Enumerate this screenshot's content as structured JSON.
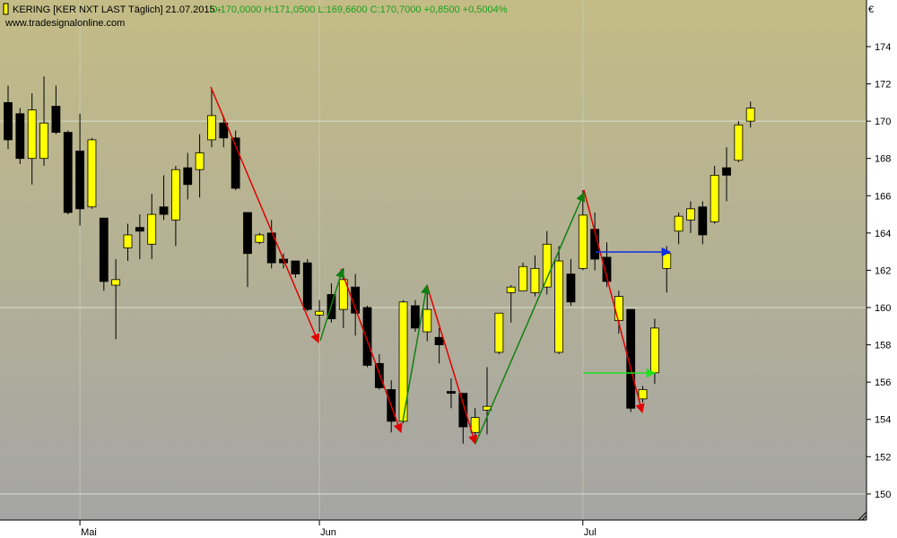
{
  "header": {
    "instrument": "KERING [KER NXT LAST Täglich] 21.07.2015 -",
    "quote": "O:170,0000 H:171,0500 L:169,6600 C:170,7000 +0,8500 +0,5004%",
    "watermark": "www.tradesignalonline.com"
  },
  "chart_data": {
    "type": "candlestick",
    "categories": [
      null,
      null,
      null,
      null,
      null,
      null,
      "Mai",
      null,
      null,
      null,
      null,
      null,
      null,
      null,
      null,
      null,
      null,
      null,
      null,
      null,
      null,
      null,
      null,
      null,
      null,
      null,
      "Jun",
      null,
      null,
      null,
      null,
      null,
      null,
      null,
      null,
      null,
      null,
      null,
      null,
      null,
      null,
      null,
      null,
      null,
      null,
      null,
      null,
      null,
      "Jul",
      null,
      null,
      null,
      null,
      null,
      null,
      null,
      null,
      null,
      null,
      null,
      null,
      null,
      null
    ],
    "open": [
      171.0,
      170.4,
      168.0,
      168.0,
      170.8,
      169.4,
      168.4,
      165.4,
      164.8,
      161.2,
      163.2,
      164.3,
      163.4,
      165.4,
      164.7,
      167.5,
      167.4,
      169.0,
      169.9,
      169.1,
      165.1,
      163.5,
      164.0,
      162.6,
      162.5,
      162.4,
      159.6,
      160.7,
      159.9,
      161.1,
      160.0,
      157.0,
      155.6,
      153.9,
      160.1,
      158.7,
      158.4,
      155.5,
      155.4,
      153.3,
      154.5,
      157.6,
      160.8,
      160.9,
      160.8,
      161.1,
      157.6,
      161.8,
      162.1,
      164.2,
      162.7,
      159.3,
      159.9,
      155.1,
      156.5,
      162.1,
      164.1,
      164.7,
      165.4,
      164.6,
      167.5,
      167.9,
      170.0
    ],
    "high": [
      171.9,
      170.7,
      171.5,
      172.4,
      171.9,
      169.5,
      170.4,
      169.1,
      164.8,
      162.6,
      164.5,
      165.0,
      166.1,
      167.1,
      167.6,
      168.3,
      169.3,
      171.7,
      170.3,
      169.5,
      165.1,
      164.0,
      164.7,
      162.9,
      162.5,
      162.6,
      160.4,
      161.3,
      162.1,
      161.8,
      160.1,
      157.5,
      156.1,
      160.4,
      160.4,
      160.9,
      158.9,
      156.2,
      155.4,
      154.6,
      156.8,
      159.7,
      161.2,
      162.4,
      162.8,
      164.1,
      163.3,
      162.6,
      166.3,
      165.1,
      163.5,
      160.9,
      159.9,
      155.8,
      159.4,
      163.3,
      165.1,
      165.7,
      165.7,
      167.6,
      168.6,
      170.0,
      171.05
    ],
    "low": [
      168.5,
      167.7,
      166.6,
      167.6,
      169.3,
      165.0,
      164.4,
      165.3,
      160.9,
      158.3,
      162.5,
      162.6,
      162.6,
      164.7,
      163.3,
      165.8,
      165.9,
      168.6,
      168.6,
      166.3,
      161.1,
      163.4,
      162.1,
      162.1,
      161.6,
      159.8,
      158.7,
      159.2,
      158.9,
      158.5,
      156.8,
      155.6,
      153.3,
      153.8,
      158.7,
      158.2,
      157.0,
      154.6,
      152.7,
      152.9,
      153.2,
      157.5,
      159.2,
      160.9,
      160.6,
      160.7,
      157.5,
      160.1,
      162.0,
      162.0,
      161.1,
      158.6,
      154.4,
      154.9,
      155.9,
      160.8,
      163.4,
      164.0,
      163.4,
      164.5,
      165.7,
      167.8,
      169.66
    ],
    "close": [
      169.0,
      168.0,
      170.6,
      169.9,
      169.4,
      165.1,
      165.3,
      169.0,
      161.4,
      161.5,
      163.9,
      164.1,
      165.0,
      165.0,
      167.4,
      166.6,
      168.3,
      170.3,
      169.1,
      166.4,
      162.9,
      163.9,
      162.4,
      162.4,
      161.8,
      159.9,
      159.8,
      159.4,
      161.5,
      159.7,
      156.9,
      155.7,
      153.9,
      160.3,
      158.9,
      159.9,
      158.0,
      155.4,
      153.6,
      154.1,
      154.7,
      159.7,
      161.1,
      162.2,
      162.1,
      163.4,
      162.5,
      160.3,
      164.96,
      162.6,
      161.4,
      160.6,
      154.6,
      155.6,
      158.9,
      162.9,
      164.9,
      165.3,
      163.9,
      167.1,
      167.1,
      169.8,
      170.7
    ],
    "up_color": "#ffff00",
    "down_color": "#000000",
    "y_unit": "€",
    "ylim": [
      148.6,
      176.5
    ],
    "yticks": [
      150,
      152,
      154,
      156,
      158,
      160,
      162,
      164,
      166,
      168,
      170,
      172,
      174
    ],
    "gridlines": [
      150,
      160,
      170
    ]
  }
}
